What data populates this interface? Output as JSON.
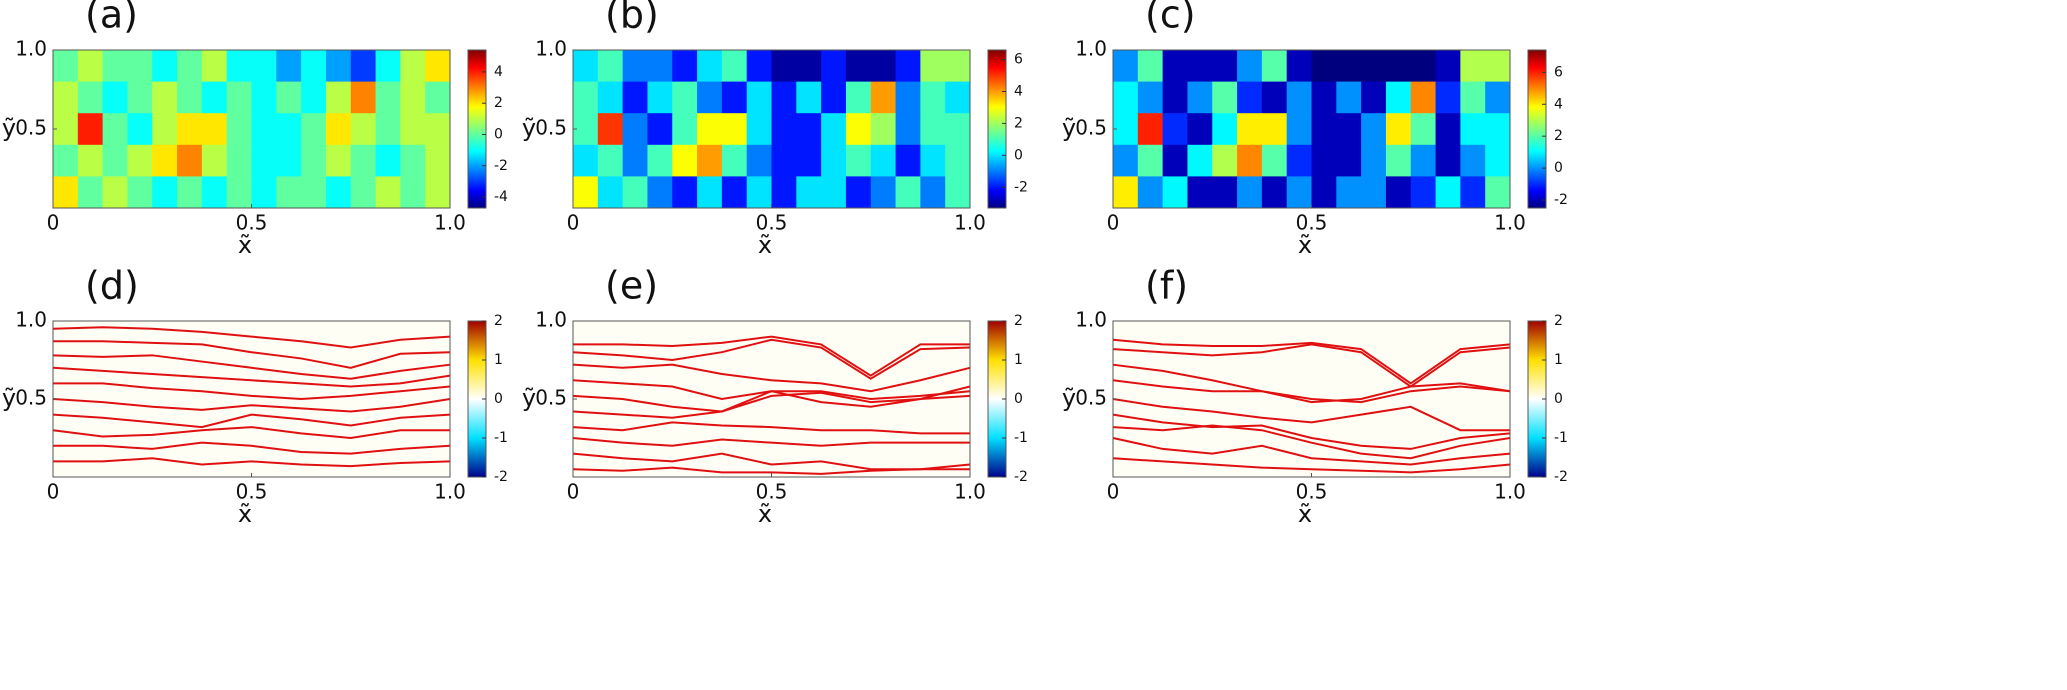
{
  "chart_data": [
    {
      "type": "heatmap",
      "title": "(a)",
      "xlabel": "x̃",
      "ylabel": "ỹ",
      "xlim": [
        0,
        1
      ],
      "ylim": [
        0,
        1
      ],
      "xticks": [
        0,
        0.5,
        {
          "value": 1,
          "label": "1.0"
        }
      ],
      "yticks": [
        0.5,
        {
          "value": 1,
          "label": "1.0"
        }
      ],
      "colormap": "jet",
      "clim": [
        -4.7,
        5.4
      ],
      "cticks": [
        -4,
        -2,
        0,
        2,
        4
      ],
      "z": [
        [
          0,
          1,
          0,
          0,
          -1,
          0,
          1,
          -1,
          -1,
          -2,
          -1,
          -2,
          -3,
          -1,
          1,
          2
        ],
        [
          1,
          0,
          -1,
          0,
          1,
          0,
          -1,
          0,
          -1,
          0,
          -1,
          1,
          3,
          0,
          1,
          0
        ],
        [
          1,
          4,
          0,
          -1,
          1,
          2,
          2,
          0,
          -1,
          -1,
          0,
          2,
          1,
          0,
          1,
          1
        ],
        [
          0,
          1,
          0,
          1,
          2,
          3,
          1,
          0,
          -1,
          -1,
          0,
          1,
          0,
          -1,
          0,
          1
        ],
        [
          2,
          0,
          1,
          0,
          -1,
          0,
          -1,
          0,
          -1,
          0,
          0,
          -1,
          0,
          1,
          0,
          1
        ]
      ]
    },
    {
      "type": "heatmap",
      "title": "(b)",
      "xlabel": "x̃",
      "ylabel": "ỹ",
      "xlim": [
        0,
        1
      ],
      "ylim": [
        0,
        1
      ],
      "xticks": [
        0,
        0.5,
        {
          "value": 1,
          "label": "1.0"
        }
      ],
      "yticks": [
        0.5,
        {
          "value": 1,
          "label": "1.0"
        }
      ],
      "colormap": "jet",
      "clim": [
        -3.3,
        6.6
      ],
      "cticks": [
        -2,
        0,
        2,
        4,
        6
      ],
      "z": [
        [
          0,
          1,
          -1,
          -1,
          -2,
          0,
          1,
          -2,
          -3,
          -3,
          -2,
          -3,
          -3,
          -2,
          2,
          2
        ],
        [
          1,
          0,
          -2,
          0,
          1,
          -1,
          -2,
          0,
          -2,
          0,
          -2,
          1,
          4,
          -1,
          1,
          0
        ],
        [
          1,
          5,
          -1,
          -2,
          1,
          3,
          3,
          0,
          -2,
          -2,
          0,
          3,
          2,
          -1,
          1,
          1
        ],
        [
          0,
          1,
          -1,
          1,
          3,
          4,
          1,
          -1,
          -2,
          -2,
          0,
          1,
          0,
          -2,
          0,
          1
        ],
        [
          3,
          0,
          1,
          -1,
          -2,
          0,
          -2,
          0,
          -2,
          0,
          0,
          -2,
          -1,
          1,
          -1,
          1
        ]
      ]
    },
    {
      "type": "heatmap",
      "title": "(c)",
      "xlabel": "x̃",
      "ylabel": "ỹ",
      "xlim": [
        0,
        1
      ],
      "ylim": [
        0,
        1
      ],
      "xticks": [
        0,
        0.5,
        {
          "value": 1,
          "label": "1.0"
        }
      ],
      "yticks": [
        0.5,
        {
          "value": 1,
          "label": "1.0"
        }
      ],
      "colormap": "jet",
      "clim": [
        -2.5,
        7.4
      ],
      "cticks": [
        -2,
        0,
        2,
        4,
        6
      ],
      "z": [
        [
          0,
          2,
          -2,
          -2,
          -2,
          0,
          2,
          -2,
          -2.5,
          -2.5,
          -2.5,
          -2.5,
          -2.5,
          -2,
          3,
          3
        ],
        [
          1,
          0,
          -2,
          0,
          2,
          -1,
          -2,
          0,
          -2,
          0,
          -2,
          1,
          5,
          -1,
          2,
          0
        ],
        [
          1,
          6,
          -1,
          -2,
          1,
          4,
          4,
          0,
          -2,
          -2,
          0,
          4,
          2,
          -2,
          1,
          1
        ],
        [
          0,
          2,
          -2,
          1,
          3,
          5,
          2,
          -1,
          -2,
          -2,
          0,
          2,
          0,
          -2,
          0,
          1
        ],
        [
          4,
          0,
          1,
          -2,
          -2,
          0,
          -2,
          0,
          -2,
          0,
          0,
          -2,
          -1,
          1,
          -1,
          2
        ]
      ]
    },
    {
      "type": "streamlines",
      "title": "(d)",
      "xlabel": "x̃",
      "ylabel": "ỹ",
      "xlim": [
        0,
        1
      ],
      "ylim": [
        0,
        1
      ],
      "xticks": [
        0,
        0.5,
        {
          "value": 1,
          "label": "1.0"
        }
      ],
      "yticks": [
        0.5,
        {
          "value": 1,
          "label": "1.0"
        }
      ],
      "colormap": "diverging",
      "clim": [
        -2,
        2
      ],
      "cticks": [
        -2,
        -1,
        0,
        1,
        2
      ],
      "color": "#e01010",
      "x": [
        0,
        0.125,
        0.25,
        0.375,
        0.5,
        0.625,
        0.75,
        0.875,
        1
      ],
      "lines": [
        [
          0.95,
          0.96,
          0.95,
          0.93,
          0.9,
          0.87,
          0.83,
          0.88,
          0.9
        ],
        [
          0.87,
          0.87,
          0.86,
          0.85,
          0.8,
          0.76,
          0.7,
          0.79,
          0.8
        ],
        [
          0.78,
          0.77,
          0.78,
          0.74,
          0.7,
          0.66,
          0.63,
          0.68,
          0.72
        ],
        [
          0.7,
          0.68,
          0.66,
          0.64,
          0.62,
          0.6,
          0.58,
          0.6,
          0.65
        ],
        [
          0.6,
          0.6,
          0.57,
          0.55,
          0.52,
          0.5,
          0.52,
          0.55,
          0.58
        ],
        [
          0.5,
          0.48,
          0.45,
          0.43,
          0.46,
          0.44,
          0.42,
          0.45,
          0.5
        ],
        [
          0.4,
          0.38,
          0.35,
          0.32,
          0.4,
          0.37,
          0.33,
          0.38,
          0.4
        ],
        [
          0.3,
          0.26,
          0.27,
          0.3,
          0.32,
          0.28,
          0.25,
          0.3,
          0.3
        ],
        [
          0.2,
          0.2,
          0.18,
          0.22,
          0.2,
          0.16,
          0.15,
          0.18,
          0.2
        ],
        [
          0.1,
          0.1,
          0.12,
          0.08,
          0.1,
          0.08,
          0.07,
          0.09,
          0.1
        ]
      ]
    },
    {
      "type": "streamlines",
      "title": "(e)",
      "xlabel": "x̃",
      "ylabel": "ỹ",
      "xlim": [
        0,
        1
      ],
      "ylim": [
        0,
        1
      ],
      "xticks": [
        0,
        0.5,
        {
          "value": 1,
          "label": "1.0"
        }
      ],
      "yticks": [
        0.5,
        {
          "value": 1,
          "label": "1.0"
        }
      ],
      "colormap": "diverging",
      "clim": [
        -2,
        2
      ],
      "cticks": [
        -2,
        -1,
        0,
        1,
        2
      ],
      "color": "#e01010",
      "x": [
        0,
        0.125,
        0.25,
        0.375,
        0.5,
        0.625,
        0.75,
        0.875,
        1
      ],
      "lines": [
        [
          0.85,
          0.85,
          0.84,
          0.86,
          0.9,
          0.85,
          0.65,
          0.85,
          0.85
        ],
        [
          0.8,
          0.78,
          0.75,
          0.8,
          0.88,
          0.83,
          0.63,
          0.82,
          0.83
        ],
        [
          0.72,
          0.7,
          0.72,
          0.66,
          0.62,
          0.6,
          0.55,
          0.62,
          0.7
        ],
        [
          0.62,
          0.6,
          0.58,
          0.5,
          0.55,
          0.48,
          0.45,
          0.5,
          0.58
        ],
        [
          0.52,
          0.5,
          0.45,
          0.42,
          0.55,
          0.55,
          0.5,
          0.52,
          0.55
        ],
        [
          0.42,
          0.4,
          0.38,
          0.42,
          0.52,
          0.54,
          0.48,
          0.5,
          0.52
        ],
        [
          0.32,
          0.3,
          0.35,
          0.33,
          0.32,
          0.3,
          0.3,
          0.28,
          0.28
        ],
        [
          0.25,
          0.22,
          0.2,
          0.24,
          0.22,
          0.2,
          0.22,
          0.22,
          0.22
        ],
        [
          0.15,
          0.12,
          0.1,
          0.15,
          0.08,
          0.1,
          0.05,
          0.05,
          0.08
        ],
        [
          0.05,
          0.04,
          0.06,
          0.03,
          0.03,
          0.02,
          0.04,
          0.05,
          0.05
        ]
      ]
    },
    {
      "type": "streamlines",
      "title": "(f)",
      "xlabel": "x̃",
      "ylabel": "ỹ",
      "xlim": [
        0,
        1
      ],
      "ylim": [
        0,
        1
      ],
      "xticks": [
        0,
        0.5,
        {
          "value": 1,
          "label": "1.0"
        }
      ],
      "yticks": [
        0.5,
        {
          "value": 1,
          "label": "1.0"
        }
      ],
      "colormap": "diverging",
      "clim": [
        -2,
        2
      ],
      "cticks": [
        -2,
        -1,
        0,
        1,
        2
      ],
      "color": "#e01010",
      "x": [
        0,
        0.125,
        0.25,
        0.375,
        0.5,
        0.625,
        0.75,
        0.875,
        1
      ],
      "lines": [
        [
          0.88,
          0.85,
          0.84,
          0.84,
          0.86,
          0.82,
          0.6,
          0.82,
          0.85
        ],
        [
          0.82,
          0.8,
          0.78,
          0.8,
          0.85,
          0.8,
          0.58,
          0.8,
          0.83
        ],
        [
          0.72,
          0.68,
          0.62,
          0.55,
          0.48,
          0.5,
          0.58,
          0.6,
          0.55
        ],
        [
          0.62,
          0.58,
          0.55,
          0.55,
          0.5,
          0.48,
          0.55,
          0.58,
          0.55
        ],
        [
          0.5,
          0.45,
          0.42,
          0.38,
          0.35,
          0.4,
          0.45,
          0.3,
          0.3
        ],
        [
          0.4,
          0.35,
          0.32,
          0.33,
          0.25,
          0.2,
          0.18,
          0.25,
          0.28
        ],
        [
          0.32,
          0.3,
          0.33,
          0.3,
          0.22,
          0.15,
          0.12,
          0.2,
          0.25
        ],
        [
          0.25,
          0.18,
          0.15,
          0.2,
          0.12,
          0.1,
          0.08,
          0.12,
          0.15
        ],
        [
          0.12,
          0.1,
          0.08,
          0.06,
          0.05,
          0.04,
          0.03,
          0.05,
          0.08
        ]
      ]
    }
  ]
}
